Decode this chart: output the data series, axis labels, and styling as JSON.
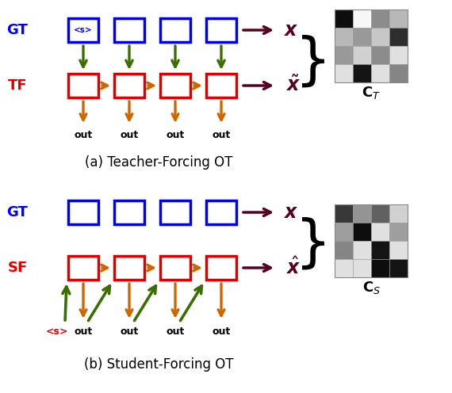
{
  "fig_width": 5.7,
  "fig_height": 4.96,
  "dpi": 100,
  "bg_color": "#ffffff",
  "blue_color": "#0000ee",
  "red_color": "#dd0000",
  "green_color": "#3a6e00",
  "orange_color": "#cc6600",
  "purple_color": "#550022",
  "black_color": "#000000",
  "ct_matrix": [
    [
      0.05,
      0.97,
      0.55,
      0.72
    ],
    [
      0.72,
      0.6,
      0.78,
      0.18
    ],
    [
      0.6,
      0.82,
      0.55,
      0.88
    ],
    [
      0.88,
      0.08,
      0.88,
      0.52
    ]
  ],
  "cs_matrix": [
    [
      0.22,
      0.58,
      0.38,
      0.82
    ],
    [
      0.62,
      0.05,
      0.88,
      0.62
    ],
    [
      0.52,
      0.88,
      0.08,
      0.88
    ],
    [
      0.88,
      0.88,
      0.05,
      0.08
    ]
  ],
  "caption_a": "(a) Teacher-Forcing OT",
  "caption_b": "(b) Student-Forcing OT",
  "label_CT": "$\\mathbf{C}_T$",
  "label_CS": "$\\mathbf{C}_S$",
  "label_GT": "GT",
  "label_TF": "TF",
  "label_SF": "SF",
  "label_x": "$\\boldsymbol{x}$",
  "label_xtilde": "$\\tilde{\\boldsymbol{x}}$",
  "label_xhat": "$\\hat{\\boldsymbol{x}}$",
  "label_s_red": "<s>",
  "label_out": "out"
}
